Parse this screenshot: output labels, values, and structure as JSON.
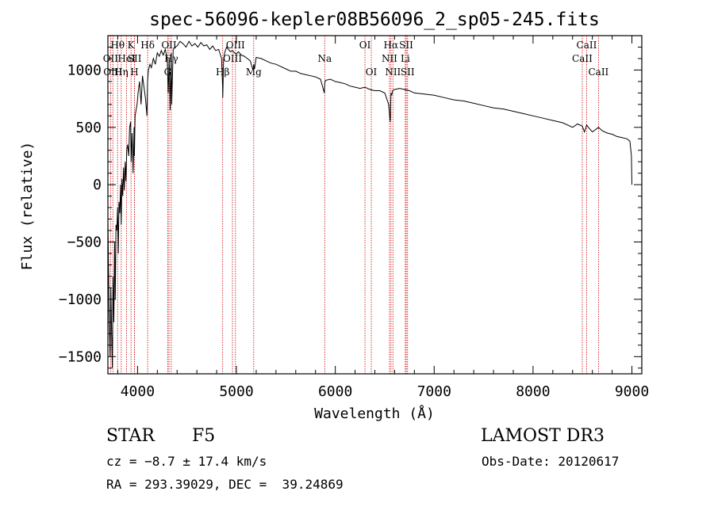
{
  "chart_data": {
    "type": "line",
    "title": "spec-56096-kepler08B56096_2_sp05-245.fits",
    "xlabel": "Wavelength (Å)",
    "ylabel": "Flux (relative)",
    "xlim": [
      3700,
      9100
    ],
    "ylim": [
      -1650,
      1300
    ],
    "xticks": [
      4000,
      5000,
      6000,
      7000,
      8000,
      9000
    ],
    "yticks": [
      -1500,
      -1000,
      -500,
      0,
      500,
      1000
    ],
    "xtick_labels": [
      "4000",
      "5000",
      "6000",
      "7000",
      "8000",
      "9000"
    ],
    "ytick_labels": [
      "−1500",
      "−1000",
      "−500",
      "0",
      "500",
      "1000"
    ],
    "series": [
      {
        "name": "flux",
        "x": [
          3700,
          3712,
          3722,
          3730,
          3738,
          3745,
          3752,
          3760,
          3768,
          3775,
          3782,
          3790,
          3798,
          3805,
          3812,
          3820,
          3828,
          3835,
          3842,
          3850,
          3858,
          3866,
          3875,
          3883,
          3890,
          3900,
          3910,
          3920,
          3930,
          3935,
          3945,
          3955,
          3965,
          3968,
          3975,
          3985,
          3995,
          4005,
          4020,
          4035,
          4050,
          4065,
          4080,
          4095,
          4101,
          4110,
          4125,
          4140,
          4160,
          4180,
          4200,
          4220,
          4240,
          4260,
          4280,
          4300,
          4310,
          4320,
          4330,
          4340,
          4345,
          4360,
          4380,
          4400,
          4430,
          4460,
          4490,
          4520,
          4550,
          4580,
          4610,
          4640,
          4670,
          4700,
          4730,
          4760,
          4790,
          4820,
          4850,
          4860,
          4862,
          4870,
          4880,
          4900,
          4920,
          4940,
          4960,
          4980,
          5000,
          5020,
          5050,
          5080,
          5110,
          5140,
          5167,
          5175,
          5183,
          5200,
          5250,
          5300,
          5350,
          5400,
          5450,
          5500,
          5550,
          5600,
          5650,
          5700,
          5750,
          5800,
          5850,
          5889,
          5893,
          5900,
          5950,
          6000,
          6050,
          6100,
          6150,
          6200,
          6250,
          6300,
          6350,
          6400,
          6450,
          6500,
          6540,
          6555,
          6563,
          6570,
          6580,
          6600,
          6650,
          6700,
          6750,
          6800,
          6900,
          7000,
          7100,
          7200,
          7300,
          7400,
          7500,
          7600,
          7700,
          7800,
          7900,
          8000,
          8100,
          8200,
          8300,
          8400,
          8450,
          8498,
          8520,
          8542,
          8560,
          8600,
          8662,
          8700,
          8750,
          8800,
          8850,
          8900,
          8950,
          8980,
          8995,
          9000
        ],
        "values": [
          -300,
          -1100,
          -1500,
          -900,
          -1300,
          -1600,
          -800,
          -1200,
          -500,
          -1000,
          -350,
          -400,
          -200,
          -600,
          -150,
          -250,
          0,
          -350,
          50,
          -100,
          150,
          -50,
          200,
          30,
          300,
          350,
          250,
          500,
          550,
          200,
          450,
          100,
          500,
          250,
          600,
          650,
          700,
          800,
          900,
          700,
          950,
          850,
          750,
          600,
          900,
          1000,
          1050,
          1020,
          1100,
          1050,
          1150,
          1120,
          1170,
          1130,
          1180,
          1100,
          800,
          1100,
          650,
          1150,
          700,
          1180,
          1200,
          1210,
          1250,
          1230,
          1200,
          1250,
          1210,
          1230,
          1200,
          1240,
          1210,
          1220,
          1180,
          1210,
          1170,
          1180,
          1100,
          850,
          760,
          1080,
          1150,
          1200,
          1180,
          1160,
          1170,
          1150,
          1140,
          1160,
          1130,
          1120,
          1100,
          1080,
          1000,
          1050,
          1010,
          1110,
          1100,
          1080,
          1060,
          1050,
          1030,
          1010,
          990,
          990,
          970,
          960,
          950,
          940,
          920,
          800,
          880,
          910,
          920,
          900,
          890,
          880,
          860,
          850,
          840,
          850,
          830,
          820,
          820,
          800,
          700,
          550,
          800,
          780,
          820,
          830,
          840,
          830,
          820,
          800,
          790,
          780,
          760,
          740,
          730,
          710,
          690,
          670,
          660,
          640,
          620,
          600,
          580,
          560,
          540,
          500,
          530,
          510,
          460,
          520,
          500,
          460,
          500,
          470,
          450,
          440,
          420,
          410,
          400,
          380,
          250,
          0
        ]
      }
    ],
    "spectral_lines": [
      {
        "label": "Hθ",
        "wavelength": 3798,
        "row": 1
      },
      {
        "label": "OII",
        "wavelength": 3727,
        "row": 2
      },
      {
        "label": "OIII",
        "wavelength": 3750,
        "row": 3
      },
      {
        "label": "Hη",
        "wavelength": 3835,
        "row": 3
      },
      {
        "label": "HeI",
        "wavelength": 3889,
        "row": 2
      },
      {
        "label": "K",
        "wavelength": 3934,
        "row": 1
      },
      {
        "label": "SII",
        "wavelength": 3970,
        "row": 2
      },
      {
        "label": "H",
        "wavelength": 3969,
        "row": 3
      },
      {
        "label": "Hδ",
        "wavelength": 4102,
        "row": 1
      },
      {
        "label": "OII",
        "wavelength": 4318,
        "row": 1
      },
      {
        "label": "Hγ",
        "wavelength": 4341,
        "row": 2
      },
      {
        "label": "G",
        "wavelength": 4305,
        "row": 3
      },
      {
        "label": "OIII",
        "wavelength": 4990,
        "row": 1
      },
      {
        "label": "OIII",
        "wavelength": 4960,
        "row": 2
      },
      {
        "label": "Hβ",
        "wavelength": 4861,
        "row": 3
      },
      {
        "label": "Mg",
        "wavelength": 5175,
        "row": 3
      },
      {
        "label": "Na",
        "wavelength": 5893,
        "row": 2
      },
      {
        "label": "OI",
        "wavelength": 6300,
        "row": 1
      },
      {
        "label": "OI",
        "wavelength": 6364,
        "row": 3
      },
      {
        "label": "Hα",
        "wavelength": 6563,
        "row": 1
      },
      {
        "label": "NII",
        "wavelength": 6548,
        "row": 2
      },
      {
        "label": "NII",
        "wavelength": 6583,
        "row": 3
      },
      {
        "label": "SII",
        "wavelength": 6717,
        "row": 1
      },
      {
        "label": "Li",
        "wavelength": 6708,
        "row": 2
      },
      {
        "label": "SII",
        "wavelength": 6731,
        "row": 3
      },
      {
        "label": "CaII",
        "wavelength": 8542,
        "row": 1
      },
      {
        "label": "CaII",
        "wavelength": 8498,
        "row": 2
      },
      {
        "label": "CaII",
        "wavelength": 8662,
        "row": 3
      }
    ]
  },
  "info": {
    "object_class": "STAR",
    "subclass": "F5",
    "survey": "LAMOST DR3",
    "cz": "cz = −8.7 ± 17.4 km/s",
    "obs_date": "Obs-Date: 20120617",
    "coords": "RA = 293.39029, DEC =  39.24869"
  },
  "colors": {
    "spectrum": "#000000",
    "line_markers": "#cc0000",
    "axes": "#000000",
    "background": "#ffffff"
  }
}
